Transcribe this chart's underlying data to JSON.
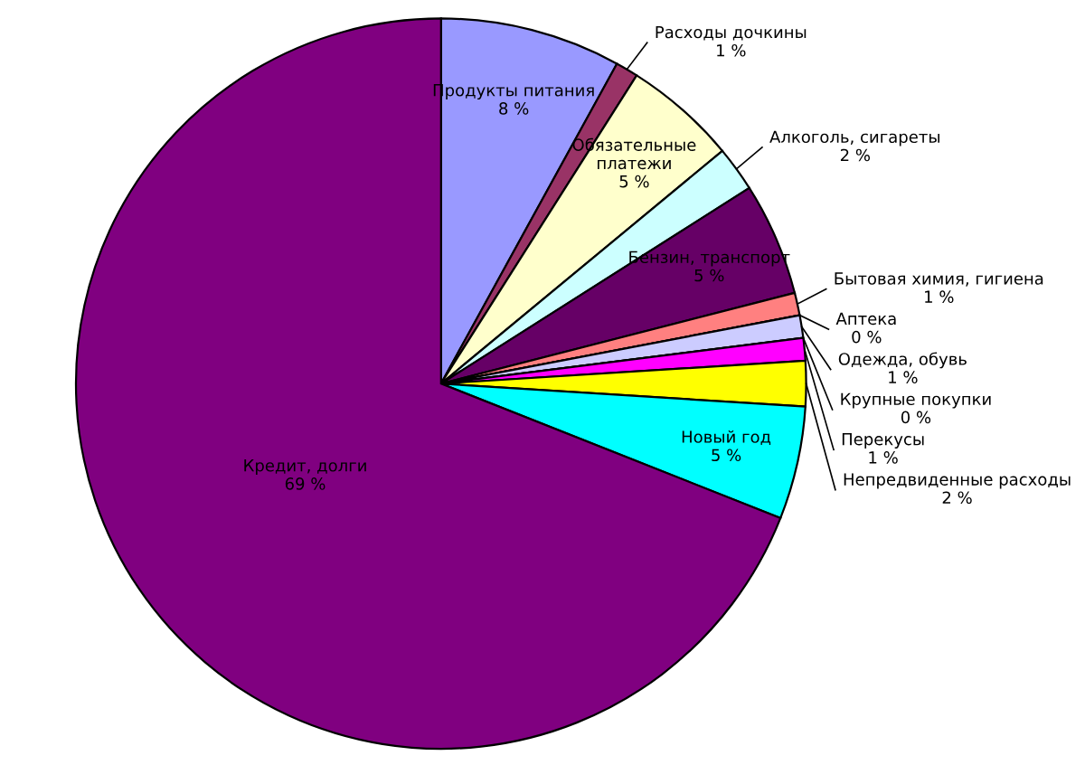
{
  "chart_data": {
    "type": "pie",
    "categories": [
      "Продукты питания",
      "Расходы дочкины",
      "Обязательные\nплатежи",
      "Алкоголь, сигареты",
      "Бензин, транспорт",
      "Бытовая химия, гигиена",
      "Аптека",
      "Одежда, обувь",
      "Крупные покупки",
      "Перекусы",
      "Непредвиденные расходы",
      "Новый год",
      "Кредит, долги"
    ],
    "values": [
      8,
      1,
      5,
      2,
      5,
      1,
      0,
      1,
      0,
      1,
      2,
      5,
      69
    ],
    "value_labels": [
      "8 %",
      "1 %",
      "5 %",
      "2 %",
      "5 %",
      "1 %",
      "0 %",
      "1 %",
      "0 %",
      "1 %",
      "2 %",
      "5 %",
      "69 %"
    ],
    "colors": [
      "#9999ff",
      "#993366",
      "#ffffcc",
      "#ccffff",
      "#660066",
      "#ff8080",
      "#0066cc",
      "#ccccff",
      "#000080",
      "#ff00ff",
      "#ffff00",
      "#00ffff",
      "#800080"
    ]
  }
}
